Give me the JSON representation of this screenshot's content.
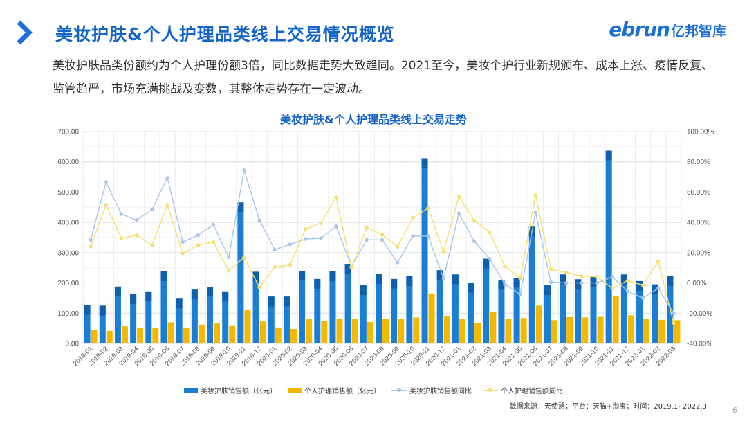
{
  "header": {
    "title": "美妆护肤&个人护理品类线上交易情况概览",
    "logo_en": "ebrun",
    "logo_cn": "亿邦智库"
  },
  "description": "美妆护肤品类份额约为个人护理份额3倍，同比数据走势大致趋同。2021至今，美妆个护行业新规颁布、成本上涨、疫情反复、监管趋严，市场充满挑战及变数，其整体走势存在一定波动。",
  "source": "数据来源：天使慧；平台：天猫+淘宝；时间：2019.1- 2022.3",
  "page_number": "6",
  "colors": {
    "beauty_bar": "#1a7fd4",
    "beauty_bar_top": "#0c5aa6",
    "care_bar": "#f5b800",
    "beauty_line": "#a9c6e8",
    "care_line": "#f7dd6e",
    "title_blue": "#1565c8"
  },
  "chart_data": {
    "type": "bar",
    "title": "美妆护肤&个人护理品类线上交易走势",
    "categories": [
      "2019-01",
      "2019-02",
      "2019-03",
      "2019-04",
      "2019-05",
      "2019-06",
      "2019-07",
      "2019-08",
      "2019-09",
      "2019-10",
      "2019-11",
      "2019-12",
      "2020-01",
      "2020-02",
      "2020-03",
      "2020-04",
      "2020-05",
      "2020-06",
      "2020-07",
      "2020-08",
      "2020-09",
      "2020-10",
      "2020-11",
      "2020-12",
      "2021-01",
      "2021-02",
      "2021-03",
      "2021-04",
      "2021-05",
      "2021-06",
      "2021-07",
      "2021-08",
      "2021-09",
      "2021-10",
      "2021-11",
      "2021-12",
      "2022-01",
      "2022-02",
      "2022-03"
    ],
    "y_left": {
      "min": 0,
      "max": 700,
      "step": 100,
      "ticks": [
        "0.00",
        "100.00",
        "200.00",
        "300.00",
        "400.00",
        "500.00",
        "600.00",
        "700.00"
      ]
    },
    "y_right": {
      "min": -40,
      "max": 100,
      "step": 20,
      "ticks": [
        "-40.00%",
        "-20.00%",
        "0.00%",
        "20.00%",
        "40.00%",
        "60.00%",
        "80.00%",
        "100.00%"
      ]
    },
    "grid": true,
    "legend_position": "bottom",
    "series": [
      {
        "name": "美妆护肤销售额（亿元）",
        "kind": "bar",
        "axis": "left",
        "values": [
          127,
          125,
          188,
          163,
          172,
          238,
          148,
          178,
          187,
          172,
          466,
          237,
          155,
          155,
          240,
          213,
          238,
          263,
          192,
          229,
          213,
          222,
          612,
          242,
          228,
          200,
          280,
          210,
          217,
          386,
          192,
          228,
          212,
          220,
          637,
          228,
          206,
          195,
          222
        ]
      },
      {
        "name": "个人护理销售额（亿元）",
        "kind": "bar",
        "axis": "left",
        "values": [
          45,
          42,
          57,
          52,
          52,
          70,
          52,
          62,
          66,
          58,
          110,
          73,
          53,
          48,
          80,
          74,
          81,
          80,
          71,
          82,
          82,
          86,
          165,
          89,
          82,
          68,
          105,
          82,
          84,
          125,
          77,
          87,
          86,
          88,
          156,
          93,
          82,
          78,
          77
        ]
      },
      {
        "name": "美妆护肤销售额同比",
        "kind": "line",
        "axis": "right",
        "values": [
          28.5,
          66.5,
          45.5,
          41.5,
          48.5,
          69.5,
          27,
          31.5,
          38.5,
          17,
          74.5,
          41.5,
          22,
          25.5,
          29,
          29.5,
          37.5,
          11,
          28.5,
          28.5,
          13.5,
          31,
          31,
          3,
          46,
          27.5,
          16,
          -1,
          -7.5,
          46.5,
          0.5,
          0,
          0,
          0,
          4,
          -5.5,
          -10,
          -3.5,
          -20
        ]
      },
      {
        "name": "个人护理销售额同比",
        "kind": "line",
        "axis": "right",
        "values": [
          24,
          51.5,
          29.5,
          31.5,
          25,
          51.5,
          19.5,
          25,
          27,
          8,
          17,
          -3,
          10.5,
          12,
          35.5,
          39.5,
          56.5,
          10,
          36.5,
          32,
          24,
          43,
          49.5,
          20.5,
          57,
          41.5,
          33.5,
          11,
          3,
          58,
          9,
          7,
          4.5,
          4,
          -3.5,
          1.5,
          -1.5,
          14.5,
          -26.5
        ]
      }
    ]
  }
}
